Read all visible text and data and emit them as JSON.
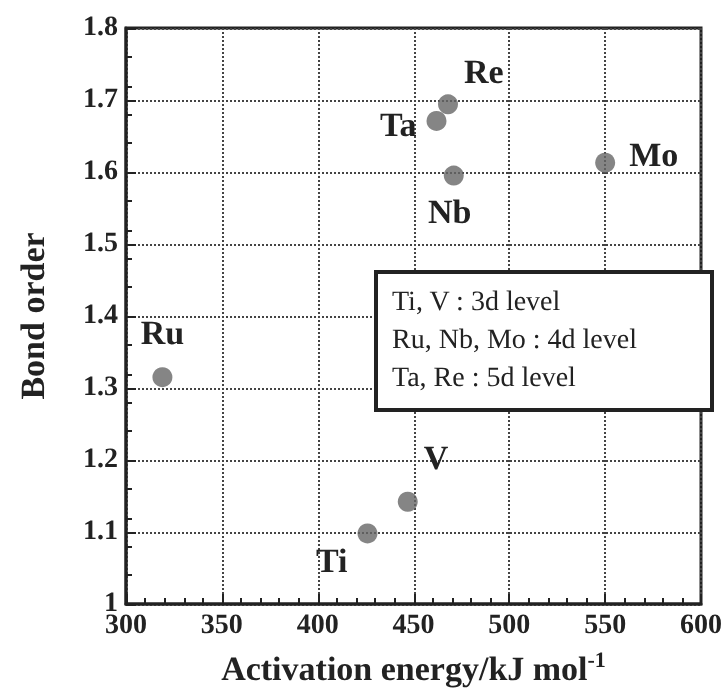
{
  "chart_data": {
    "type": "scatter",
    "xlabel": "Activation energy/kJ mol$^{-1}$",
    "ylabel": "Bond order",
    "x": [
      319,
      426,
      447,
      462,
      468,
      471,
      550
    ],
    "values": [
      1.315,
      1.098,
      1.142,
      1.671,
      1.694,
      1.595,
      1.613
    ],
    "color": "#666666",
    "marker": "circle",
    "xlim": [
      300,
      600
    ],
    "xticks": [
      300,
      350,
      400,
      450,
      500,
      550,
      600
    ],
    "ylim": [
      1,
      1.8
    ],
    "yticks": [
      1,
      1.1,
      1.2,
      1.3,
      1.4,
      1.5,
      1.6,
      1.7,
      1.8
    ],
    "grid": true,
    "annotations": [
      {
        "text": "Ru",
        "x": 319,
        "y": 1.315
      },
      {
        "text": "Ti",
        "x": 426,
        "y": 1.098
      },
      {
        "text": "V",
        "x": 447,
        "y": 1.142
      },
      {
        "text": "Ta",
        "x": 462,
        "y": 1.671
      },
      {
        "text": "Re",
        "x": 468,
        "y": 1.694
      },
      {
        "text": "Nb",
        "x": 471,
        "y": 1.595
      },
      {
        "text": "Mo",
        "x": 550,
        "y": 1.613
      },
      "Ti, V : 3d level",
      "Ru, Nb, Mo : 4d level",
      "Ta, Re : 5d level"
    ]
  }
}
